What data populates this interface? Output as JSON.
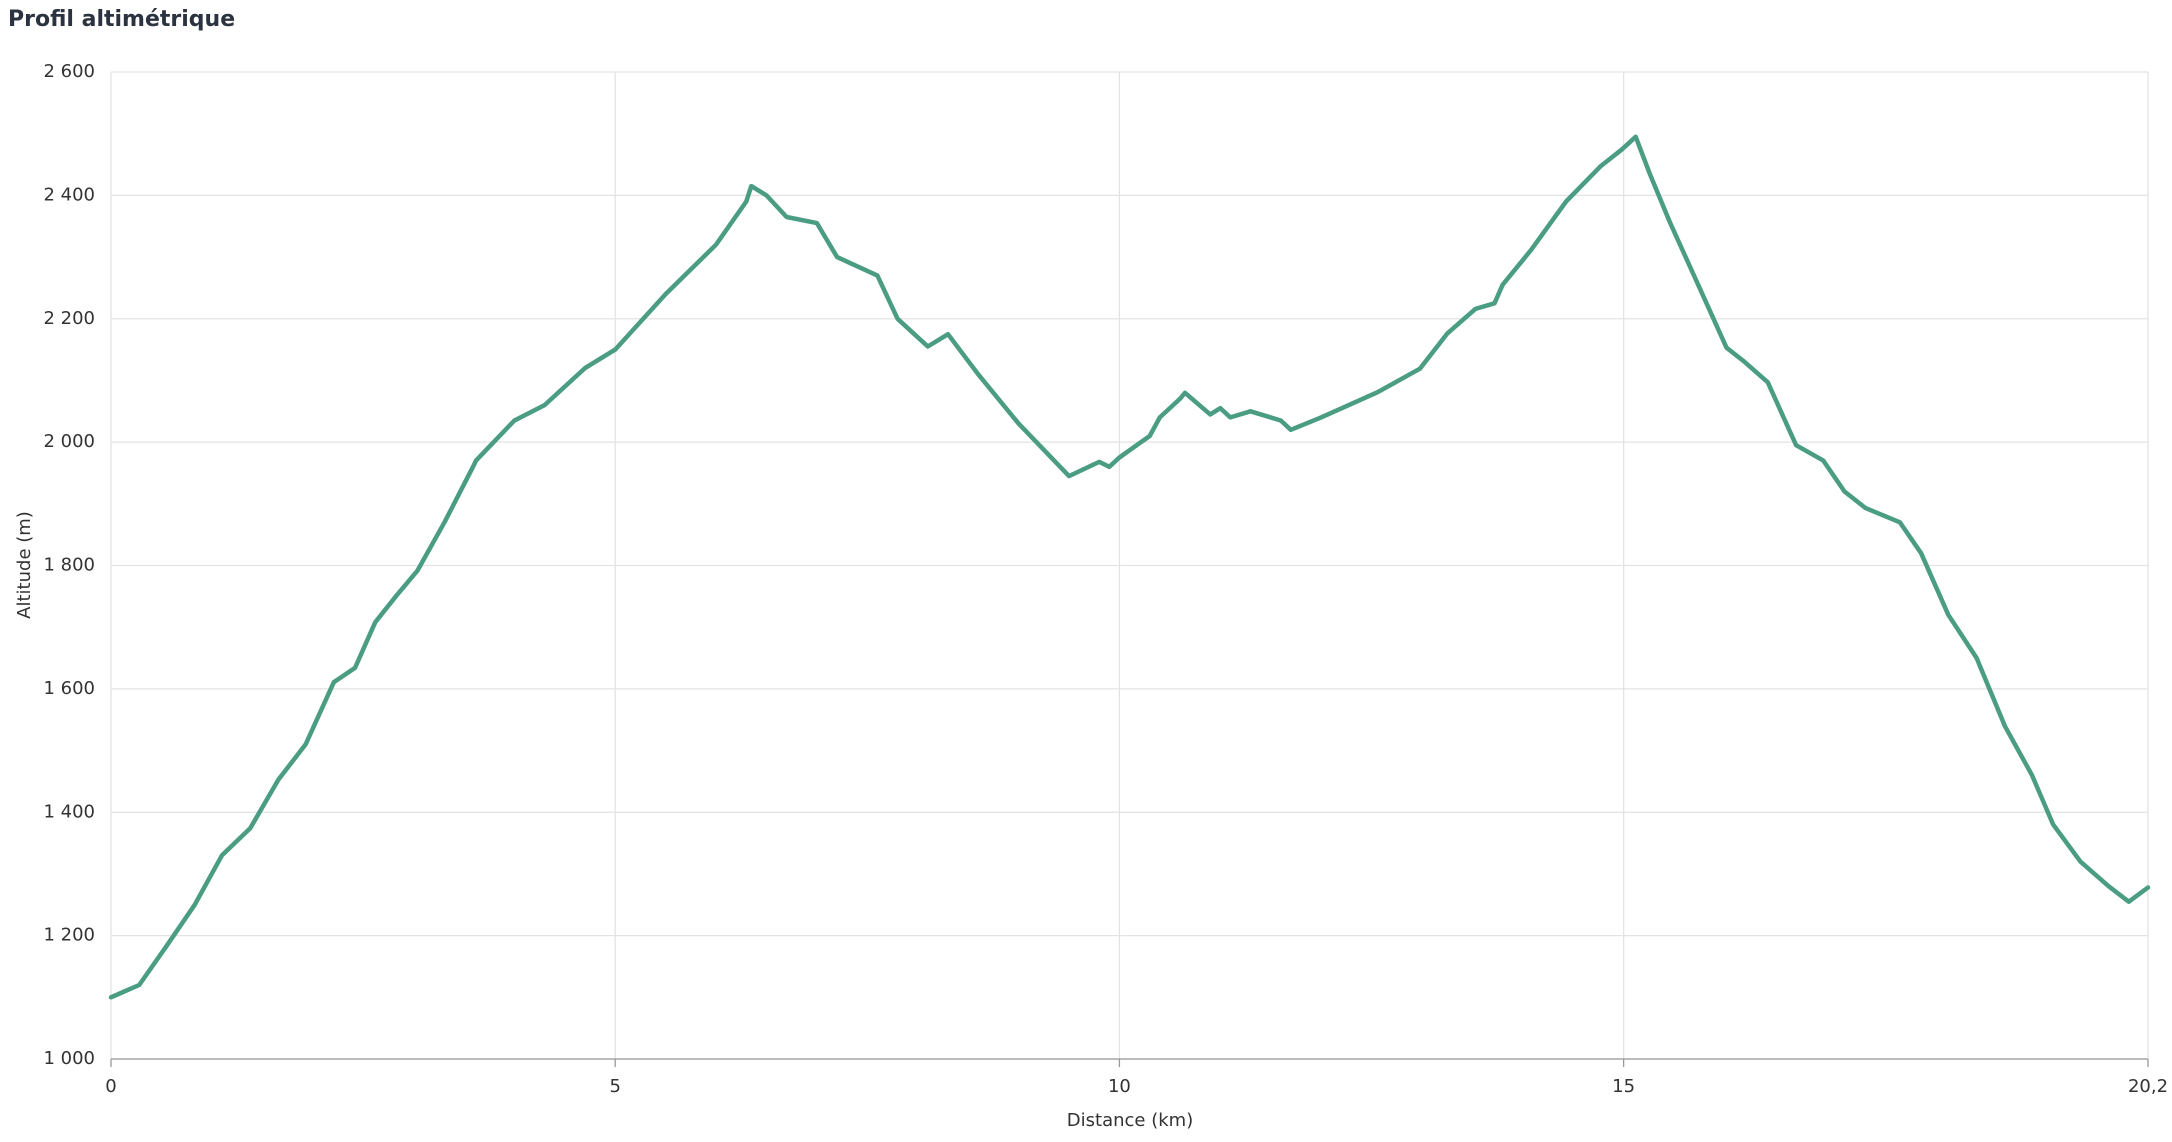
{
  "chart_data": {
    "type": "line",
    "title": "Profil altimétrique",
    "xlabel": "Distance (km)",
    "ylabel": "Altitude (m)",
    "color": "#4a9d82",
    "grid": true,
    "xlim": [
      0,
      20.2
    ],
    "ylim": [
      1000,
      2600
    ],
    "xticks": [
      0,
      5,
      10,
      15,
      {
        "value": 20.2,
        "label": "20,2"
      }
    ],
    "yticks": [
      {
        "value": 1000,
        "label": "1 000"
      },
      {
        "value": 1200,
        "label": "1 200"
      },
      {
        "value": 1400,
        "label": "1 400"
      },
      {
        "value": 1600,
        "label": "1 600"
      },
      {
        "value": 1800,
        "label": "1 800"
      },
      {
        "value": 2000,
        "label": "2 000"
      },
      {
        "value": 2200,
        "label": "2 200"
      },
      {
        "value": 2400,
        "label": "2 400"
      },
      {
        "value": 2600,
        "label": "2 600"
      }
    ],
    "x": [
      0,
      0.28,
      0.55,
      0.83,
      1.1,
      1.38,
      1.66,
      1.93,
      2.21,
      2.42,
      2.62,
      2.83,
      3.04,
      3.31,
      3.59,
      3.62,
      4.0,
      4.3,
      4.7,
      5.0,
      5.5,
      6.0,
      6.3,
      6.35,
      6.5,
      6.7,
      7.0,
      7.2,
      7.6,
      7.8,
      8.1,
      8.3,
      8.6,
      9.0,
      9.5,
      9.8,
      9.9,
      10.0,
      10.3,
      10.4,
      10.6,
      10.65,
      10.9,
      11.0,
      11.1,
      11.3,
      11.6,
      11.7,
      12.0,
      12.56,
      12.98,
      13.25,
      13.53,
      13.72,
      13.8,
      14.08,
      14.43,
      14.77,
      14.98,
      15.12,
      15.26,
      15.46,
      15.74,
      16.02,
      16.2,
      16.43,
      16.71,
      16.98,
      17.19,
      17.4,
      17.74,
      17.95,
      18.22,
      18.5,
      18.78,
      19.05,
      19.26,
      19.53,
      19.81,
      20.01,
      20.2
    ],
    "values": [
      1100,
      1120,
      1183,
      1250,
      1330,
      1374,
      1453,
      1510,
      1611,
      1634,
      1708,
      1751,
      1792,
      1871,
      1960,
      1970,
      2035,
      2060,
      2120,
      2150,
      2240,
      2320,
      2390,
      2415,
      2400,
      2365,
      2355,
      2300,
      2270,
      2200,
      2155,
      2175,
      2110,
      2030,
      1945,
      1968,
      1960,
      1975,
      2010,
      2040,
      2070,
      2080,
      2045,
      2055,
      2040,
      2050,
      2035,
      2020,
      2040,
      2081,
      2119,
      2176,
      2216,
      2225,
      2255,
      2311,
      2390,
      2447,
      2474,
      2495,
      2435,
      2356,
      2255,
      2153,
      2130,
      2097,
      1995,
      1970,
      1920,
      1893,
      1870,
      1820,
      1720,
      1650,
      1540,
      1460,
      1380,
      1320,
      1280,
      1255,
      1278
    ]
  }
}
